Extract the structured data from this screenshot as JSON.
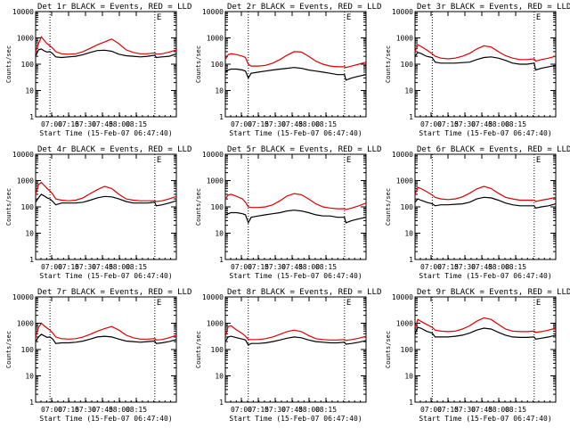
{
  "colors": {
    "events": "#000000",
    "lld": "#e00000",
    "background": "#ffffff",
    "axis": "#000000"
  },
  "x_tick_labels": [
    "07:00",
    "07:15",
    "07:30",
    "07:45",
    "08:00",
    "08:15"
  ],
  "y_tick_labels": [
    "1",
    "10",
    "100",
    "1000",
    "10000"
  ],
  "chart_data": [
    {
      "type": "line",
      "title": "Det 1r BLACK = Events, RED = LLD",
      "xlabel": "Start Time (15-Feb-07 06:47:40)",
      "ylabel": "Counts/sec",
      "marker": "E",
      "xlim": [
        52,
        150
      ],
      "ylim": [
        1,
        10000
      ],
      "yscale": "log",
      "vlines": [
        62,
        135
      ],
      "x": [
        52,
        54,
        56,
        58,
        60,
        62,
        64,
        66,
        70,
        75,
        80,
        85,
        90,
        95,
        100,
        105,
        110,
        115,
        120,
        125,
        130,
        135,
        136,
        140,
        145,
        150
      ],
      "series": [
        {
          "name": "Events",
          "color": "#000000",
          "values": [
            200,
            350,
            380,
            320,
            290,
            300,
            250,
            190,
            180,
            190,
            200,
            230,
            280,
            330,
            340,
            310,
            240,
            210,
            200,
            190,
            200,
            220,
            180,
            190,
            200,
            250
          ]
        },
        {
          "name": "LLD",
          "color": "#e00000",
          "values": [
            300,
            600,
            1100,
            800,
            600,
            500,
            400,
            300,
            250,
            240,
            250,
            300,
            400,
            550,
            700,
            900,
            600,
            350,
            280,
            250,
            250,
            270,
            240,
            250,
            290,
            350
          ]
        }
      ]
    },
    {
      "type": "line",
      "title": "Det 2r BLACK = Events, RED = LLD",
      "xlabel": "Start Time (15-Feb-07 06:47:40)",
      "ylabel": "Counts/sec",
      "marker": "E",
      "xlim": [
        52,
        150
      ],
      "ylim": [
        1,
        10000
      ],
      "yscale": "log",
      "vlines": [
        68,
        135
      ],
      "x": [
        52,
        54,
        56,
        60,
        64,
        66,
        68,
        70,
        75,
        80,
        85,
        90,
        95,
        100,
        105,
        110,
        115,
        120,
        125,
        130,
        135,
        136,
        140,
        145,
        150
      ],
      "series": [
        {
          "name": "Events",
          "color": "#000000",
          "values": [
            50,
            60,
            65,
            65,
            60,
            55,
            30,
            45,
            50,
            55,
            60,
            65,
            70,
            75,
            70,
            60,
            55,
            50,
            45,
            40,
            40,
            25,
            30,
            35,
            40
          ]
        },
        {
          "name": "LLD",
          "color": "#e00000",
          "values": [
            150,
            230,
            250,
            230,
            200,
            180,
            100,
            85,
            85,
            90,
            110,
            150,
            220,
            300,
            290,
            200,
            130,
            100,
            85,
            80,
            80,
            75,
            85,
            100,
            120
          ]
        }
      ]
    },
    {
      "type": "line",
      "title": "Det 3r BLACK = Events, RED = LLD",
      "xlabel": "Start Time (15-Feb-07 06:47:40)",
      "ylabel": "Counts/sec",
      "marker": "E",
      "xlim": [
        52,
        150
      ],
      "ylim": [
        1,
        10000
      ],
      "yscale": "log",
      "vlines": [
        64,
        135
      ],
      "x": [
        52,
        54,
        56,
        60,
        64,
        66,
        70,
        75,
        80,
        85,
        90,
        95,
        100,
        105,
        110,
        115,
        120,
        125,
        130,
        135,
        136,
        140,
        145,
        150
      ],
      "series": [
        {
          "name": "Events",
          "color": "#000000",
          "values": [
            200,
            280,
            260,
            200,
            180,
            120,
            110,
            110,
            110,
            115,
            120,
            150,
            180,
            190,
            170,
            140,
            110,
            100,
            100,
            110,
            60,
            70,
            80,
            90
          ]
        },
        {
          "name": "LLD",
          "color": "#e00000",
          "values": [
            300,
            550,
            480,
            350,
            250,
            200,
            170,
            160,
            170,
            200,
            260,
            380,
            500,
            450,
            300,
            210,
            170,
            150,
            150,
            160,
            130,
            150,
            170,
            200
          ]
        }
      ]
    },
    {
      "type": "line",
      "title": "Det 4r BLACK = Events, RED = LLD",
      "xlabel": "Start Time (15-Feb-07 06:47:40)",
      "ylabel": "Counts/sec",
      "marker": "E",
      "xlim": [
        52,
        150
      ],
      "ylim": [
        1,
        10000
      ],
      "yscale": "log",
      "vlines": [
        62,
        135
      ],
      "x": [
        52,
        54,
        56,
        58,
        60,
        62,
        64,
        66,
        70,
        75,
        80,
        85,
        90,
        95,
        100,
        105,
        110,
        115,
        120,
        125,
        130,
        135,
        136,
        140,
        145,
        150
      ],
      "series": [
        {
          "name": "Events",
          "color": "#000000",
          "values": [
            150,
            220,
            300,
            260,
            220,
            200,
            160,
            120,
            140,
            140,
            140,
            150,
            180,
            220,
            250,
            240,
            200,
            160,
            140,
            140,
            140,
            150,
            110,
            120,
            140,
            170
          ]
        },
        {
          "name": "LLD",
          "color": "#e00000",
          "values": [
            300,
            700,
            850,
            650,
            500,
            400,
            300,
            200,
            180,
            170,
            180,
            220,
            320,
            450,
            600,
            500,
            300,
            200,
            180,
            170,
            170,
            170,
            160,
            170,
            200,
            250
          ]
        }
      ]
    },
    {
      "type": "line",
      "title": "Det 5r BLACK = Events, RED = LLD",
      "xlabel": "Start Time (15-Feb-07 06:47:40)",
      "ylabel": "Counts/sec",
      "marker": "E",
      "xlim": [
        52,
        150
      ],
      "ylim": [
        1,
        10000
      ],
      "yscale": "log",
      "vlines": [
        68,
        135
      ],
      "x": [
        52,
        54,
        56,
        60,
        64,
        66,
        68,
        70,
        75,
        80,
        85,
        90,
        95,
        100,
        105,
        110,
        115,
        120,
        125,
        130,
        135,
        136,
        140,
        145,
        150
      ],
      "series": [
        {
          "name": "Events",
          "color": "#000000",
          "values": [
            50,
            55,
            60,
            60,
            55,
            50,
            25,
            40,
            45,
            50,
            55,
            60,
            70,
            75,
            70,
            60,
            50,
            45,
            45,
            40,
            40,
            25,
            30,
            35,
            40
          ]
        },
        {
          "name": "LLD",
          "color": "#e00000",
          "values": [
            200,
            280,
            300,
            250,
            200,
            150,
            100,
            95,
            95,
            100,
            120,
            170,
            260,
            320,
            290,
            200,
            130,
            100,
            90,
            85,
            85,
            80,
            90,
            110,
            140
          ]
        }
      ]
    },
    {
      "type": "line",
      "title": "Det 6r BLACK = Events, RED = LLD",
      "xlabel": "Start Time (15-Feb-07 06:47:40)",
      "ylabel": "Counts/sec",
      "marker": "E",
      "xlim": [
        52,
        150
      ],
      "ylim": [
        1,
        10000
      ],
      "yscale": "log",
      "vlines": [
        64,
        135
      ],
      "x": [
        52,
        54,
        56,
        60,
        64,
        66,
        70,
        75,
        80,
        85,
        90,
        95,
        100,
        105,
        110,
        115,
        120,
        125,
        130,
        135,
        136,
        140,
        145,
        150
      ],
      "series": [
        {
          "name": "Events",
          "color": "#000000",
          "values": [
            150,
            200,
            180,
            150,
            130,
            110,
            120,
            120,
            125,
            130,
            150,
            200,
            230,
            220,
            180,
            140,
            120,
            110,
            110,
            110,
            90,
            100,
            110,
            130
          ]
        },
        {
          "name": "LLD",
          "color": "#e00000",
          "values": [
            300,
            550,
            500,
            380,
            280,
            230,
            200,
            190,
            200,
            240,
            330,
            480,
            600,
            500,
            330,
            230,
            200,
            180,
            180,
            180,
            160,
            180,
            200,
            230
          ]
        }
      ]
    },
    {
      "type": "line",
      "title": "Det 7r BLACK = Events, RED = LLD",
      "xlabel": "Start Time (15-Feb-07 06:47:40)",
      "ylabel": "Counts/sec",
      "marker": "E",
      "xlim": [
        52,
        150
      ],
      "ylim": [
        1,
        10000
      ],
      "yscale": "log",
      "vlines": [
        62,
        135
      ],
      "x": [
        52,
        54,
        56,
        58,
        60,
        62,
        64,
        66,
        70,
        75,
        80,
        85,
        90,
        95,
        100,
        105,
        110,
        115,
        120,
        125,
        130,
        135,
        136,
        140,
        145,
        150
      ],
      "series": [
        {
          "name": "Events",
          "color": "#000000",
          "values": [
            200,
            300,
            380,
            330,
            290,
            300,
            250,
            170,
            180,
            180,
            190,
            210,
            250,
            300,
            320,
            300,
            250,
            210,
            200,
            190,
            200,
            210,
            170,
            180,
            200,
            240
          ]
        },
        {
          "name": "LLD",
          "color": "#e00000",
          "values": [
            300,
            700,
            1000,
            800,
            650,
            550,
            420,
            300,
            260,
            250,
            260,
            300,
            380,
            500,
            620,
            750,
            550,
            350,
            280,
            250,
            250,
            260,
            230,
            240,
            280,
            350
          ]
        }
      ]
    },
    {
      "type": "line",
      "title": "Det 8r BLACK = Events, RED = LLD",
      "xlabel": "Start Time (15-Feb-07 06:47:40)",
      "ylabel": "Counts/sec",
      "marker": "E",
      "xlim": [
        52,
        150
      ],
      "ylim": [
        1,
        10000
      ],
      "yscale": "log",
      "vlines": [
        68,
        135
      ],
      "x": [
        52,
        54,
        56,
        60,
        64,
        66,
        68,
        70,
        75,
        80,
        85,
        90,
        95,
        100,
        105,
        110,
        115,
        120,
        125,
        130,
        135,
        136,
        140,
        145,
        150
      ],
      "series": [
        {
          "name": "Events",
          "color": "#000000",
          "values": [
            200,
            300,
            320,
            280,
            250,
            230,
            150,
            170,
            170,
            180,
            200,
            230,
            270,
            300,
            280,
            230,
            200,
            190,
            180,
            180,
            190,
            160,
            170,
            190,
            220
          ]
        },
        {
          "name": "LLD",
          "color": "#e00000",
          "values": [
            300,
            750,
            800,
            550,
            400,
            320,
            240,
            240,
            240,
            260,
            300,
            380,
            480,
            550,
            480,
            340,
            260,
            240,
            230,
            230,
            240,
            220,
            240,
            270,
            320
          ]
        }
      ]
    },
    {
      "type": "line",
      "title": "Det 9r BLACK = Events, RED = LLD",
      "xlabel": "Start Time (15-Feb-07 06:47:40)",
      "ylabel": "Counts/sec",
      "marker": "E",
      "xlim": [
        52,
        150
      ],
      "ylim": [
        1,
        10000
      ],
      "yscale": "log",
      "vlines": [
        64,
        135
      ],
      "x": [
        52,
        54,
        56,
        60,
        64,
        66,
        70,
        75,
        80,
        85,
        90,
        95,
        100,
        105,
        110,
        115,
        120,
        125,
        130,
        135,
        136,
        140,
        145,
        150
      ],
      "series": [
        {
          "name": "Events",
          "color": "#000000",
          "values": [
            400,
            700,
            650,
            500,
            420,
            300,
            300,
            300,
            320,
            350,
            420,
            550,
            650,
            600,
            450,
            350,
            300,
            290,
            290,
            300,
            250,
            270,
            300,
            350
          ]
        },
        {
          "name": "LLD",
          "color": "#e00000",
          "values": [
            700,
            1400,
            1200,
            900,
            700,
            550,
            500,
            480,
            500,
            600,
            800,
            1200,
            1600,
            1400,
            900,
            600,
            500,
            480,
            480,
            500,
            450,
            480,
            550,
            650
          ]
        }
      ]
    }
  ]
}
